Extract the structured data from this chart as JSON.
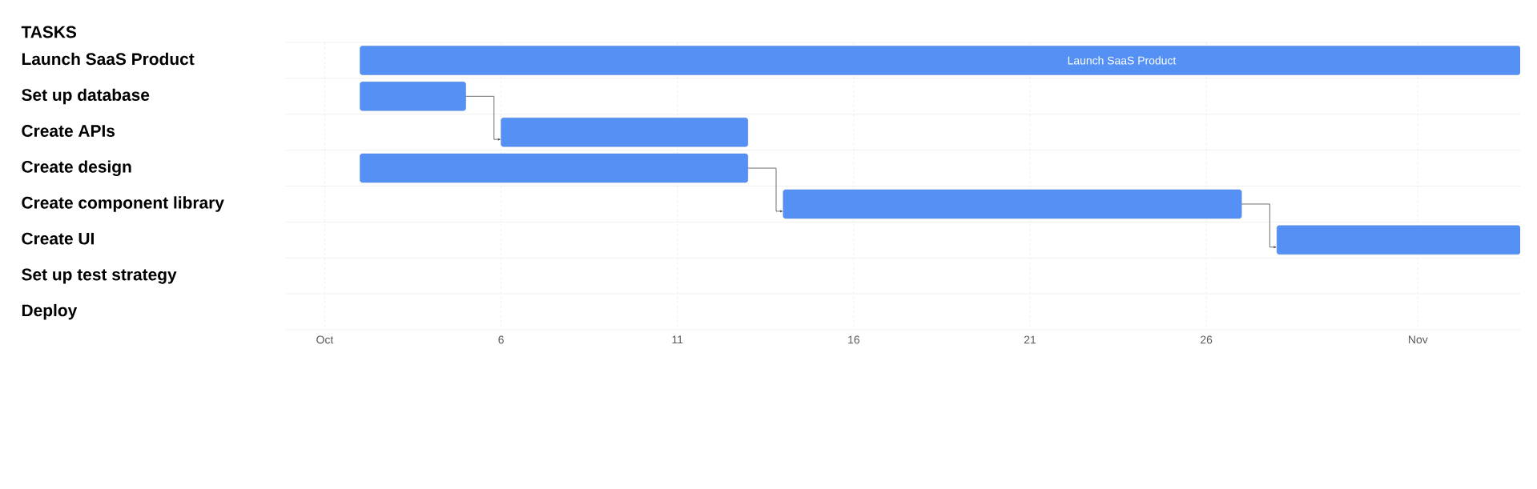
{
  "chart_data": {
    "type": "bar",
    "orientation": "horizontal",
    "ylabel": "TASKS",
    "categories": [
      "Launch SaaS Product",
      "Set up database",
      "Create APIs",
      "Create design",
      "Create component library",
      "Create UI",
      "Set up test strategy",
      "Deploy"
    ],
    "base": [
      2,
      2,
      6,
      2,
      14,
      28,
      null,
      null
    ],
    "values": [
      32.9,
      3,
      7,
      11,
      13,
      6.9,
      null,
      null
    ],
    "color": "#5591f5",
    "xlim": [
      -0.1,
      34.9
    ],
    "xticks": [
      {
        "value": 1,
        "label": "Oct"
      },
      6,
      11,
      16,
      21,
      26,
      {
        "value": 32,
        "label": "Nov"
      }
    ],
    "grid": true,
    "annotations": [
      {
        "text": "Launch SaaS Product",
        "x": 23.6,
        "y": "Launch SaaS Product"
      }
    ]
  }
}
